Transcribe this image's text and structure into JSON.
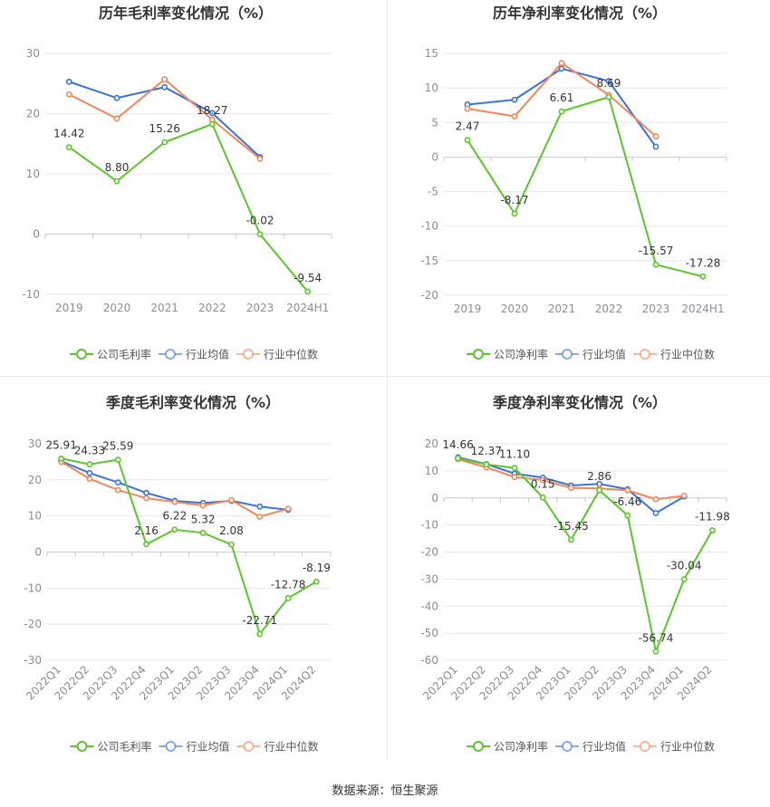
{
  "source": "数据来源：恒生聚源",
  "colors": {
    "company": "#5cc72a",
    "industry_avg": "#3a73d9",
    "industry_median": "#f2875a",
    "grid": "#e6e8ee",
    "axis": "#9aa0a6"
  },
  "legend_labels": [
    "行业均值",
    "行业中位数"
  ],
  "chart_data": [
    {
      "type": "line",
      "title": "历年毛利率变化情况（%）",
      "categories": [
        "2019",
        "2020",
        "2021",
        "2022",
        "2023",
        "2024H1"
      ],
      "ylim": [
        -10,
        30
      ],
      "yticks": [
        -10,
        0,
        10,
        20,
        30
      ],
      "rotate_x": false,
      "series": [
        {
          "name": "公司毛利率",
          "role": "company",
          "values": [
            14.42,
            8.8,
            15.26,
            18.27,
            -0.02,
            -9.54
          ],
          "labels": [
            "14.42",
            "8.80",
            "15.26",
            "18.27",
            "-0.02",
            "-9.54"
          ]
        },
        {
          "name": "行业均值",
          "role": "industry_avg",
          "values": [
            25.3,
            22.6,
            24.4,
            20.1,
            12.8,
            null
          ]
        },
        {
          "name": "行业中位数",
          "role": "industry_median",
          "values": [
            23.2,
            19.2,
            25.7,
            19.0,
            12.5,
            null
          ]
        }
      ]
    },
    {
      "type": "line",
      "title": "历年净利率变化情况（%）",
      "categories": [
        "2019",
        "2020",
        "2021",
        "2022",
        "2023",
        "2024H1"
      ],
      "ylim": [
        -20,
        15
      ],
      "yticks": [
        -20,
        -15,
        -10,
        -5,
        0,
        5,
        10,
        15
      ],
      "rotate_x": false,
      "series": [
        {
          "name": "公司净利率",
          "role": "company",
          "values": [
            2.47,
            -8.17,
            6.61,
            8.69,
            -15.57,
            -17.28
          ],
          "labels": [
            "2.47",
            "-8.17",
            "6.61",
            "8.69",
            "-15.57",
            "-17.28"
          ]
        },
        {
          "name": "行业均值",
          "role": "industry_avg",
          "values": [
            7.6,
            8.3,
            12.8,
            11.0,
            1.5,
            null
          ]
        },
        {
          "name": "行业中位数",
          "role": "industry_median",
          "values": [
            7.0,
            5.9,
            13.6,
            9.0,
            3.0,
            null
          ]
        }
      ]
    },
    {
      "type": "line",
      "title": "季度毛利率变化情况（%）",
      "categories": [
        "2022Q1",
        "2022Q2",
        "2022Q3",
        "2022Q4",
        "2023Q1",
        "2023Q2",
        "2023Q3",
        "2023Q4",
        "2024Q1",
        "2024Q2"
      ],
      "ylim": [
        -30,
        30
      ],
      "yticks": [
        -30,
        -20,
        -10,
        0,
        10,
        20,
        30
      ],
      "rotate_x": true,
      "series": [
        {
          "name": "公司毛利率",
          "role": "company",
          "values": [
            25.91,
            24.33,
            25.59,
            2.16,
            6.22,
            5.32,
            2.08,
            -22.71,
            -12.78,
            -8.19
          ],
          "labels": [
            "25.91",
            "24.33",
            "25.59",
            "2.16",
            "6.22",
            "5.32",
            "2.08",
            "-22.71",
            "-12.78",
            "-8.19"
          ]
        },
        {
          "name": "行业均值",
          "role": "industry_avg",
          "values": [
            25.2,
            21.9,
            19.3,
            16.4,
            14.2,
            13.6,
            14.2,
            12.6,
            11.7,
            null
          ]
        },
        {
          "name": "行业中位数",
          "role": "industry_median",
          "values": [
            25.0,
            20.3,
            17.2,
            14.9,
            13.9,
            12.9,
            14.4,
            9.8,
            12.0,
            null
          ]
        }
      ]
    },
    {
      "type": "line",
      "title": "季度净利率变化情况（%）",
      "categories": [
        "2022Q1",
        "2022Q2",
        "2022Q3",
        "2022Q4",
        "2023Q1",
        "2023Q2",
        "2023Q3",
        "2023Q4",
        "2024Q1",
        "2024Q2"
      ],
      "ylim": [
        -60,
        20
      ],
      "yticks": [
        -60,
        -50,
        -40,
        -30,
        -20,
        -10,
        0,
        10,
        20
      ],
      "rotate_x": true,
      "series": [
        {
          "name": "公司净利率",
          "role": "company",
          "values": [
            14.66,
            12.37,
            11.1,
            0.15,
            -15.45,
            2.86,
            -6.46,
            -56.74,
            -30.04,
            -11.98
          ],
          "labels": [
            "14.66",
            "12.37",
            "11.10",
            "0.15",
            "-15.45",
            "2.86",
            "-6.46",
            "-56.74",
            "-30.04",
            "-11.98"
          ]
        },
        {
          "name": "行业均值",
          "role": "industry_avg",
          "values": [
            15.0,
            12.5,
            9.0,
            7.5,
            4.6,
            5.2,
            3.2,
            -5.6,
            0.5,
            null
          ]
        },
        {
          "name": "行业中位数",
          "role": "industry_median",
          "values": [
            14.3,
            11.3,
            7.7,
            6.6,
            3.7,
            3.5,
            2.8,
            -0.5,
            0.8,
            null
          ]
        }
      ]
    }
  ]
}
